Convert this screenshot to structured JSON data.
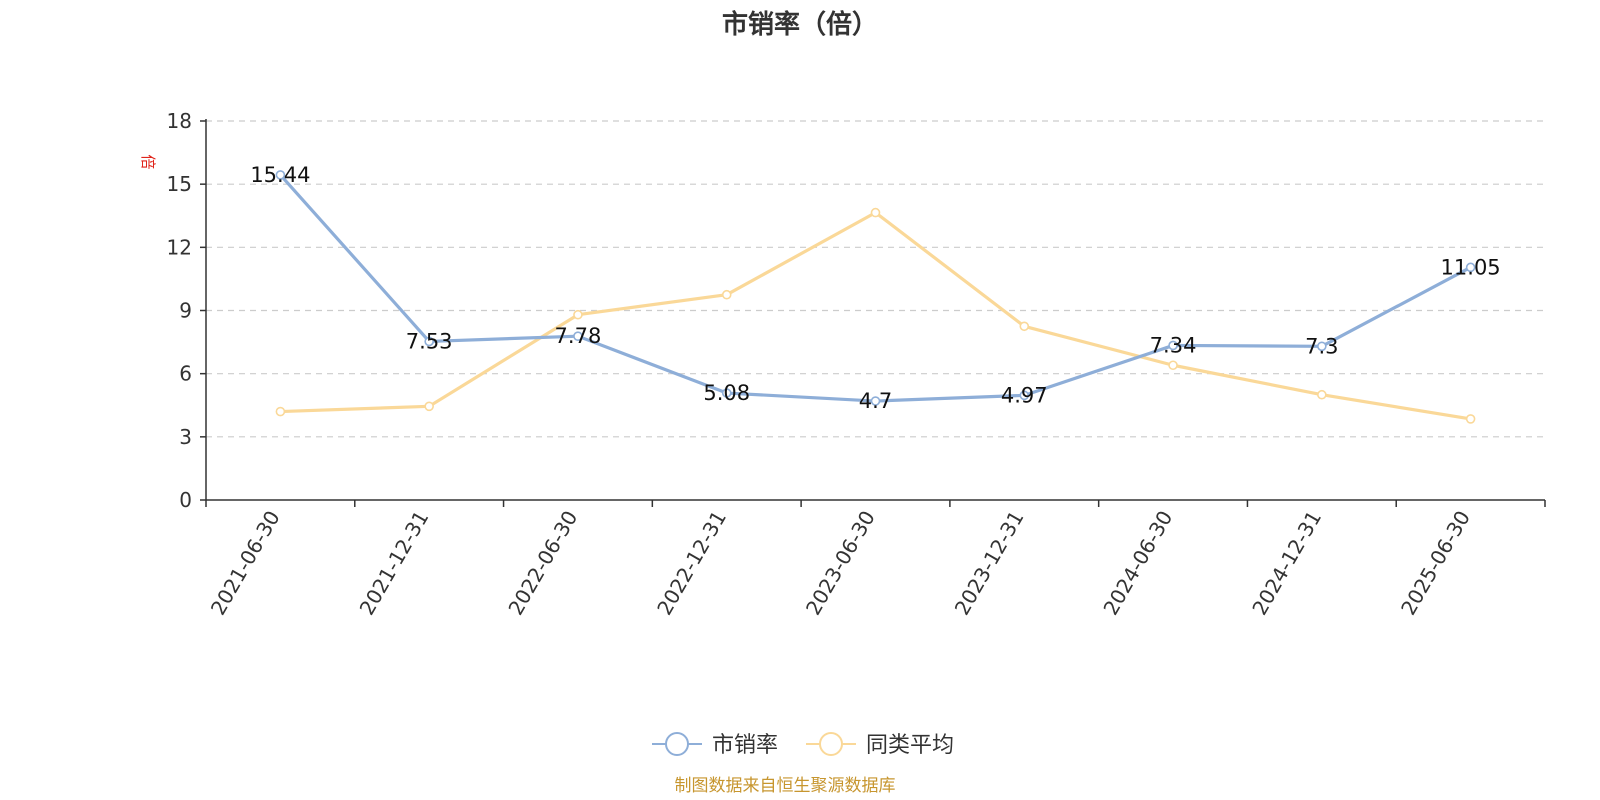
{
  "chart_data": {
    "type": "line",
    "title": "市销率（倍）",
    "ylabel": "倍",
    "categories": [
      "2021-06-30",
      "2021-12-31",
      "2022-06-30",
      "2022-12-31",
      "2023-06-30",
      "2023-12-31",
      "2024-06-30",
      "2024-12-31",
      "2025-06-30"
    ],
    "ylim": [
      0,
      18
    ],
    "yticks": [
      0,
      3,
      6,
      9,
      12,
      15,
      18
    ],
    "grid": true,
    "legend_position": "bottom-center",
    "series": [
      {
        "name": "市销率",
        "color": "#8eaed8",
        "values": [
          15.44,
          7.53,
          7.78,
          5.08,
          4.7,
          4.97,
          7.34,
          7.3,
          11.05
        ],
        "show_labels": true
      },
      {
        "name": "同类平均",
        "color": "#fad898",
        "values": [
          4.2,
          4.45,
          8.8,
          9.75,
          13.65,
          8.25,
          6.4,
          5.0,
          3.85
        ],
        "show_labels": false
      }
    ]
  },
  "source_note": "制图数据来自恒生聚源数据库"
}
